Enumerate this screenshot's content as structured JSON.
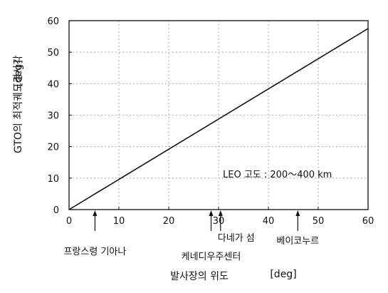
{
  "chart_data": {
    "type": "line",
    "xlabel": "발사장의 위도",
    "xunit": "[deg]",
    "ylabel": "GTO의 최적궤도경사각",
    "yunit": "[deg]",
    "xlim": [
      0,
      60
    ],
    "ylim": [
      0,
      60
    ],
    "xticks": [
      0,
      10,
      20,
      30,
      40,
      50,
      60
    ],
    "yticks": [
      0,
      10,
      20,
      30,
      40,
      50,
      60
    ],
    "grid": true,
    "series": [
      {
        "x": [
          0,
          60
        ],
        "y": [
          0,
          57.5
        ]
      }
    ],
    "annotation": "LEO 고도 : 200～400 km",
    "markers": [
      {
        "x": 5.2,
        "label": "프랑스령 기아나"
      },
      {
        "x": 28.5,
        "label": "케네디우주센터"
      },
      {
        "x": 30.4,
        "label": "다네가 섬"
      },
      {
        "x": 45.9,
        "label": "베이코누르"
      }
    ]
  }
}
